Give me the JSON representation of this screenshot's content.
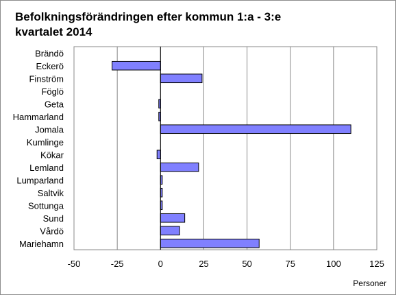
{
  "chart_data": {
    "type": "bar",
    "orientation": "horizontal",
    "title_lines": [
      "Befolkningsförändringen efter kommun 1:a - 3:e",
      "kvartalet 2014"
    ],
    "xlabel": "Personer",
    "xlim": [
      -50,
      125
    ],
    "xticks": [
      -50,
      -25,
      0,
      25,
      50,
      75,
      100,
      125
    ],
    "grid": "vertical",
    "bar_color": "#8080ff",
    "categories": [
      "Brändö",
      "Eckerö",
      "Finström",
      "Föglö",
      "Geta",
      "Hammarland",
      "Jomala",
      "Kumlinge",
      "Kökar",
      "Lemland",
      "Lumparland",
      "Saltvik",
      "Sottunga",
      "Sund",
      "Vårdö",
      "Mariehamn"
    ],
    "values": [
      0,
      -28,
      24,
      0,
      -1,
      -1,
      110,
      0,
      -2,
      22,
      1,
      1,
      1,
      14,
      11,
      57
    ]
  }
}
